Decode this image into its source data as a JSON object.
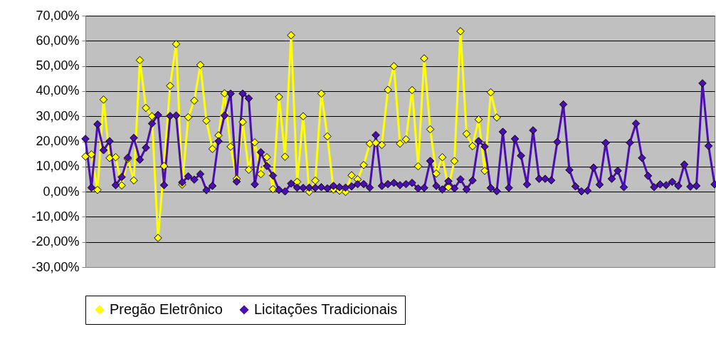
{
  "chart_data": {
    "type": "line",
    "marker": "diamond",
    "line_style": "solid",
    "grid": "y",
    "legend": "bottom",
    "tick_labels": "y",
    "categories": [
      null,
      null,
      null,
      null,
      null,
      null,
      null,
      null,
      null,
      null,
      null,
      null,
      null,
      null,
      null,
      null,
      null,
      null,
      null,
      null,
      null,
      null,
      null,
      null,
      null,
      null,
      null,
      null,
      null,
      null,
      null,
      null,
      null,
      null,
      null,
      null,
      null,
      null,
      null,
      null,
      null,
      null,
      null,
      null,
      null,
      null,
      null,
      null,
      null,
      null,
      null,
      null,
      null,
      null,
      null,
      null,
      null,
      null,
      null,
      null,
      null,
      null,
      null,
      null,
      null,
      null,
      null,
      null,
      null,
      null,
      null,
      null,
      null,
      null,
      null,
      null,
      null,
      null,
      null,
      null,
      null,
      null,
      null,
      null,
      null,
      null,
      null,
      null,
      null,
      null,
      null,
      null,
      null,
      null,
      null,
      null,
      null,
      null,
      null,
      null,
      null,
      null,
      null,
      null,
      null
    ],
    "ylim": [
      -30,
      70
    ],
    "yticks": [
      {
        "value": -30,
        "label": "-30,00%"
      },
      {
        "value": -20,
        "label": "-20,00%"
      },
      {
        "value": -10,
        "label": "-10,00%"
      },
      {
        "value": 0,
        "label": "0,00%"
      },
      {
        "value": 10,
        "label": "10,00%"
      },
      {
        "value": 20,
        "label": "20,00%"
      },
      {
        "value": 30,
        "label": "30,00%"
      },
      {
        "value": 40,
        "label": "40,00%"
      },
      {
        "value": 50,
        "label": "50,00%"
      },
      {
        "value": 60,
        "label": "60,00%"
      },
      {
        "value": 70,
        "label": "70,00%"
      }
    ],
    "series": [
      {
        "name": "Pregão Eletrônico",
        "color": "#ffff00",
        "values": [
          14.0,
          14.8,
          0.7,
          36.6,
          13.4,
          13.7,
          2.5,
          13.0,
          4.5,
          52.3,
          33.3,
          30.0,
          -18.4,
          10.2,
          42.1,
          58.7,
          2.8,
          29.6,
          36.2,
          50.4,
          28.2,
          17.0,
          22.4,
          39.1,
          17.9,
          5.1,
          27.7,
          8.7,
          19.6,
          7.0,
          13.7,
          1.0,
          37.7,
          13.9,
          62.2,
          3.9,
          30.0,
          -0.1,
          4.4,
          39.0,
          22.0,
          0.9,
          0.4,
          -0.1,
          6.5,
          4.9,
          10.6,
          19.1,
          19.4,
          18.6,
          40.5,
          49.9,
          19.1,
          20.8,
          40.4,
          10.1,
          53.0,
          24.8,
          7.2,
          13.7,
          1.8,
          12.2,
          63.8,
          23.0,
          18.1,
          28.7,
          8.3,
          39.5,
          29.5,
          null,
          null,
          null,
          null,
          null,
          null,
          null,
          null,
          null,
          null,
          null,
          null,
          null,
          null,
          null,
          null,
          null,
          null,
          null,
          null,
          null,
          null,
          null,
          null,
          null,
          null,
          null,
          null,
          null,
          null,
          null,
          null,
          null,
          null,
          null,
          null
        ]
      },
      {
        "name": "Licitações Tradicionais",
        "color": "#4b0fb0",
        "values": [
          21.0,
          1.6,
          26.8,
          16.5,
          20.1,
          2.6,
          5.8,
          13.5,
          21.4,
          12.7,
          17.5,
          27.1,
          30.5,
          2.6,
          30.1,
          30.3,
          3.7,
          6.1,
          4.8,
          7.0,
          0.6,
          2.3,
          20.1,
          30.3,
          39.0,
          4.0,
          39.0,
          37.1,
          2.9,
          15.7,
          10.2,
          6.4,
          0.7,
          0.1,
          3.2,
          1.6,
          1.5,
          1.6,
          1.5,
          1.8,
          1.3,
          2.3,
          1.8,
          1.6,
          2.1,
          3.0,
          3.0,
          1.6,
          22.5,
          2.3,
          3.0,
          3.5,
          2.6,
          3.0,
          3.5,
          1.3,
          1.5,
          12.2,
          2.3,
          0.9,
          4.2,
          1.3,
          4.9,
          0.9,
          4.5,
          20.1,
          17.9,
          1.5,
          0.2,
          23.8,
          1.5,
          21.0,
          14.3,
          2.9,
          24.4,
          5.1,
          5.1,
          4.5,
          19.8,
          34.7,
          8.6,
          2.1,
          0.1,
          0.4,
          9.6,
          2.8,
          19.4,
          5.1,
          8.3,
          1.8,
          19.5,
          27.1,
          13.4,
          6.3,
          1.8,
          2.9,
          2.6,
          3.9,
          2.3,
          10.8,
          2.0,
          2.3,
          43.1,
          18.2,
          2.9
        ]
      }
    ]
  }
}
